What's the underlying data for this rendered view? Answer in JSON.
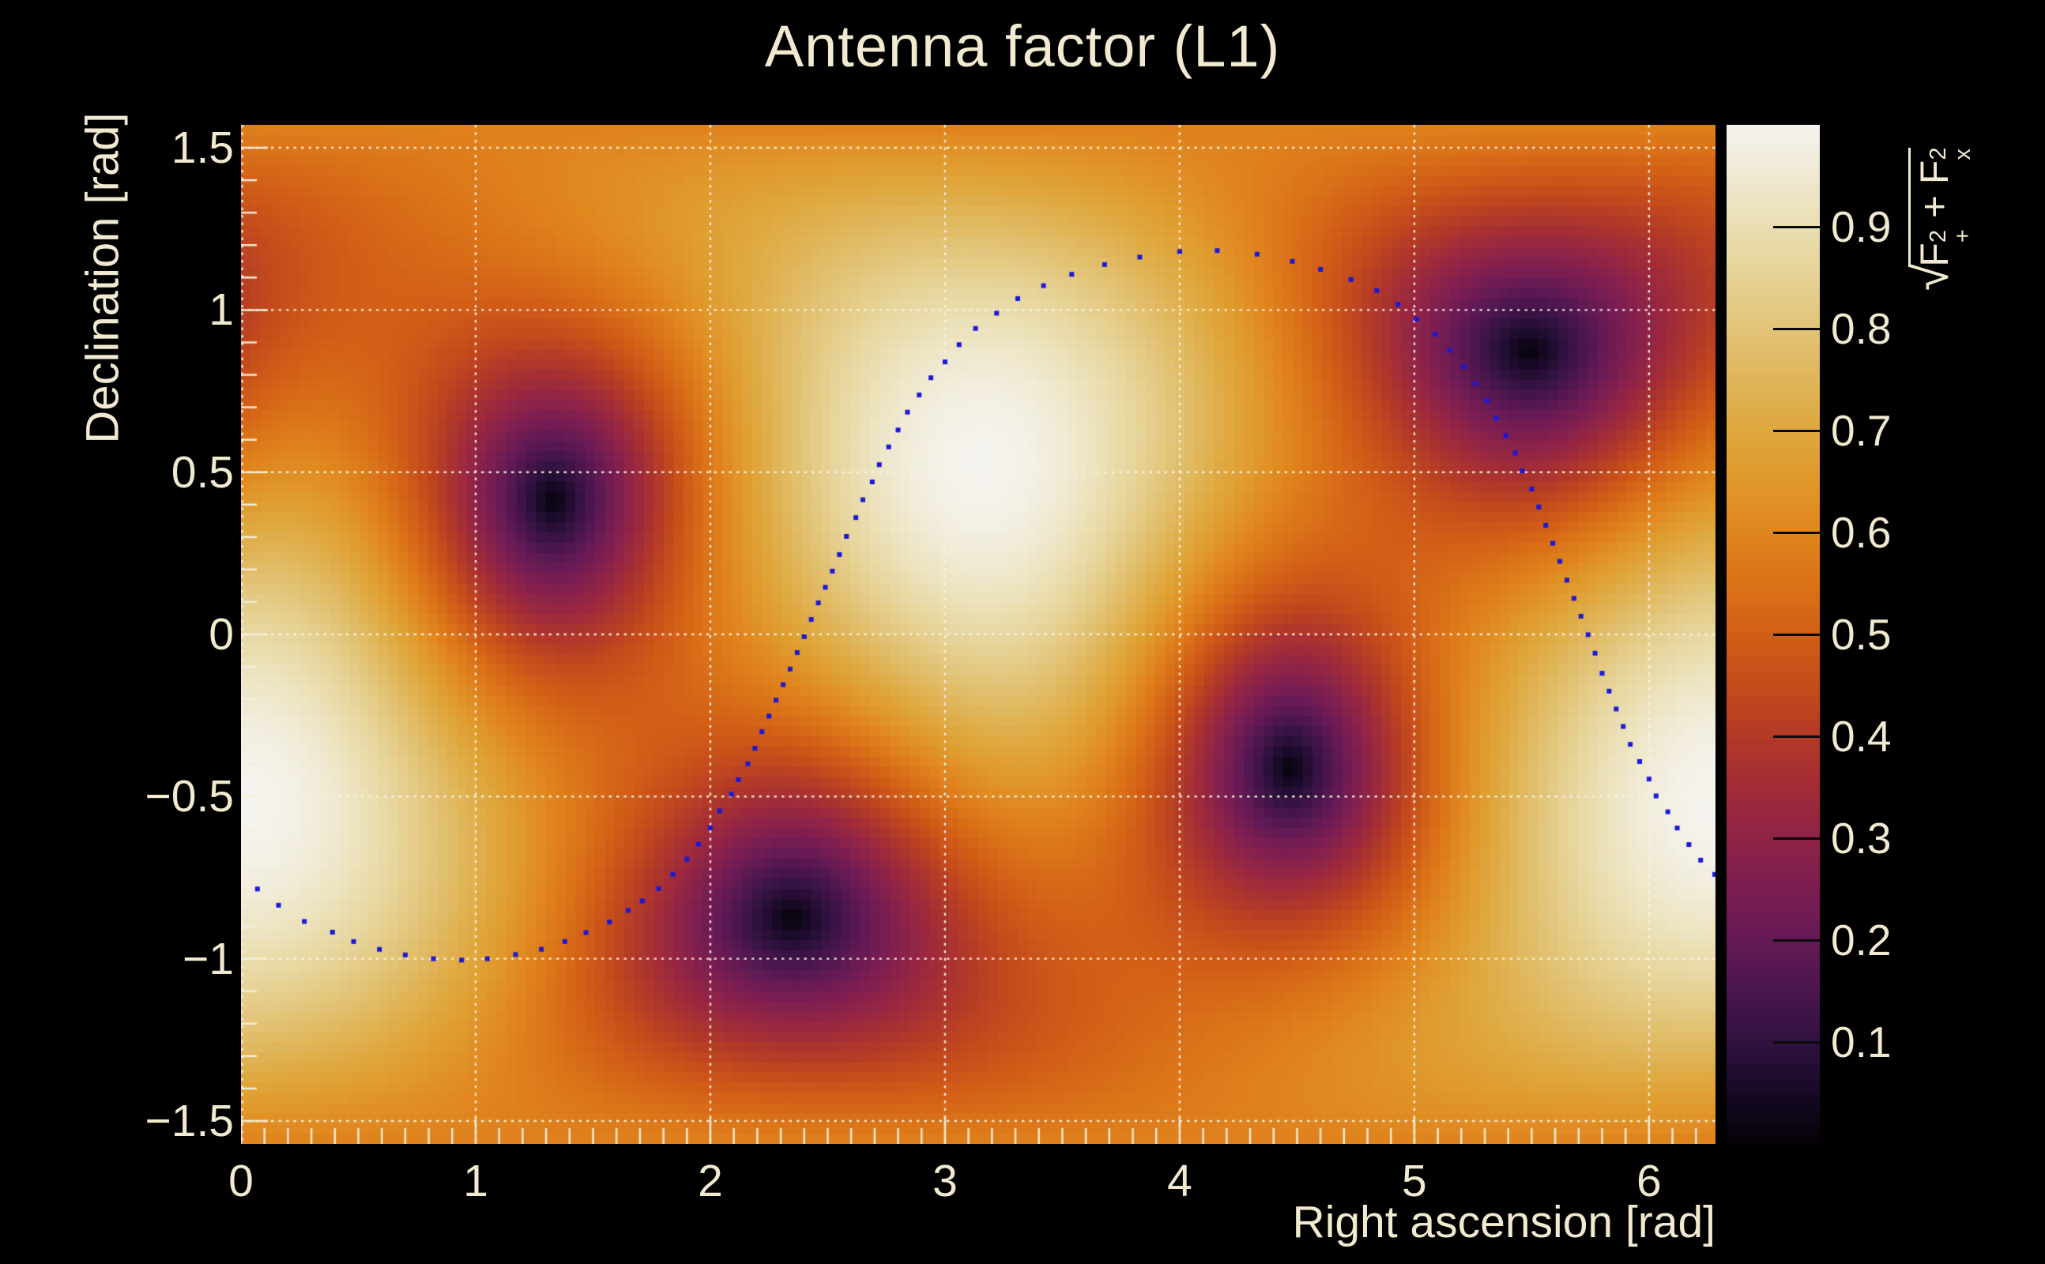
{
  "page": {
    "background_color": "#000000",
    "text_color": "#f2ead0",
    "grid_color": "rgba(248,243,228,0.92)",
    "tick_color": "rgba(244,238,220,0.95)"
  },
  "title": "Antenna factor (L1)",
  "axis_titles": {
    "x": "Right ascension [rad]",
    "y": "Declination [rad]"
  },
  "formula": {
    "radical": "√",
    "f1": "F",
    "sup1": "2",
    "sub1": "+",
    "plus": " + ",
    "f2": "F",
    "sup2": "2",
    "sub2": "x"
  },
  "chart_data": {
    "type": "heatmap",
    "title": "Antenna factor (L1)",
    "xlabel": "Right ascension [rad]",
    "ylabel": "Declination [rad]",
    "zlabel": "sqrt(F+^2 + Fx^2)",
    "xlim": [
      0,
      6.28319
    ],
    "ylim": [
      -1.5708,
      1.5708
    ],
    "zlim": [
      0,
      1
    ],
    "grid": true,
    "x_ticks": [
      0,
      1,
      2,
      3,
      4,
      5,
      6
    ],
    "y_ticks": [
      1.5,
      1.0,
      0.5,
      0.0,
      -0.5,
      -1.0,
      -1.5
    ],
    "y_tick_labels": [
      "1.5",
      "1",
      "0.5",
      "0",
      "−0.5",
      "−1",
      "−1.5"
    ],
    "z_ticks": [
      0.9,
      0.8,
      0.7,
      0.6,
      0.5,
      0.4,
      0.3,
      0.2,
      0.1
    ],
    "z_tick_labels": [
      "0.9",
      "0.8",
      "0.7",
      "0.6",
      "0.5",
      "0.4",
      "0.3",
      "0.2",
      "0.1"
    ],
    "minor_tick_step": 0.1,
    "bins": {
      "x": 150,
      "y": 100
    },
    "model": {
      "kind": "interferometer_antenna_power_pattern",
      "formula": "sqrt(0.25*(1+cos^2(theta))^2*cos^2(2*phi) + cos^2(theta)*sin^2(2*phi))",
      "zenith_ra": 3.156,
      "zenith_dec": 0.524,
      "null1_ra": 1.33,
      "null1_dec": 0.413,
      "null2_ra": 5.511,
      "null2_dec": 0.879,
      "maxima": [
        [
          3.156,
          0.524
        ],
        [
          0.014,
          -0.524
        ]
      ],
      "nulls": [
        [
          1.33,
          0.413
        ],
        [
          2.369,
          -0.879
        ],
        [
          4.472,
          -0.413
        ],
        [
          5.511,
          0.879
        ]
      ]
    },
    "palette": [
      [
        0.0,
        "#060207"
      ],
      [
        0.05,
        "#190a28"
      ],
      [
        0.1,
        "#311240"
      ],
      [
        0.15,
        "#4c164e"
      ],
      [
        0.2,
        "#661a55"
      ],
      [
        0.25,
        "#7c1e51"
      ],
      [
        0.3,
        "#902447"
      ],
      [
        0.35,
        "#a32d37"
      ],
      [
        0.4,
        "#b43b26"
      ],
      [
        0.45,
        "#c54d1b"
      ],
      [
        0.5,
        "#d25f17"
      ],
      [
        0.55,
        "#db7318"
      ],
      [
        0.6,
        "#e0861e"
      ],
      [
        0.65,
        "#e0992b"
      ],
      [
        0.7,
        "#dfa83f"
      ],
      [
        0.75,
        "#e0b65b"
      ],
      [
        0.8,
        "#e2c478"
      ],
      [
        0.85,
        "#e6d295"
      ],
      [
        0.9,
        "#eadfb2"
      ],
      [
        0.95,
        "#f0e9d1"
      ],
      [
        1.0,
        "#f5f3ee"
      ]
    ],
    "track": {
      "color": "#1b18d6",
      "marker": "square",
      "size": 6,
      "points": [
        [
          0.07,
          -0.785
        ],
        [
          0.16,
          -0.835
        ],
        [
          0.27,
          -0.885
        ],
        [
          0.39,
          -0.918
        ],
        [
          0.48,
          -0.947
        ],
        [
          0.59,
          -0.971
        ],
        [
          0.7,
          -0.988
        ],
        [
          0.82,
          -1.0
        ],
        [
          0.94,
          -1.004
        ],
        [
          1.05,
          -1.0
        ],
        [
          1.17,
          -0.987
        ],
        [
          1.28,
          -0.971
        ],
        [
          1.38,
          -0.947
        ],
        [
          1.47,
          -0.919
        ],
        [
          1.57,
          -0.887
        ],
        [
          1.65,
          -0.851
        ],
        [
          1.71,
          -0.822
        ],
        [
          1.78,
          -0.784
        ],
        [
          1.84,
          -0.74
        ],
        [
          1.9,
          -0.693
        ],
        [
          1.95,
          -0.647
        ],
        [
          2.0,
          -0.596
        ],
        [
          2.04,
          -0.544
        ],
        [
          2.09,
          -0.493
        ],
        [
          2.12,
          -0.448
        ],
        [
          2.16,
          -0.399
        ],
        [
          2.19,
          -0.351
        ],
        [
          2.22,
          -0.3
        ],
        [
          2.25,
          -0.252
        ],
        [
          2.28,
          -0.203
        ],
        [
          2.31,
          -0.155
        ],
        [
          2.34,
          -0.107
        ],
        [
          2.37,
          -0.056
        ],
        [
          2.4,
          -0.007
        ],
        [
          2.43,
          0.046
        ],
        [
          2.46,
          0.097
        ],
        [
          2.49,
          0.145
        ],
        [
          2.52,
          0.195
        ],
        [
          2.55,
          0.246
        ],
        [
          2.58,
          0.302
        ],
        [
          2.62,
          0.36
        ],
        [
          2.65,
          0.415
        ],
        [
          2.69,
          0.47
        ],
        [
          2.72,
          0.523
        ],
        [
          2.76,
          0.578
        ],
        [
          2.8,
          0.63
        ],
        [
          2.84,
          0.685
        ],
        [
          2.89,
          0.738
        ],
        [
          2.94,
          0.791
        ],
        [
          3.0,
          0.84
        ],
        [
          3.06,
          0.893
        ],
        [
          3.13,
          0.943
        ],
        [
          3.22,
          0.99
        ],
        [
          3.31,
          1.035
        ],
        [
          3.42,
          1.075
        ],
        [
          3.54,
          1.11
        ],
        [
          3.68,
          1.14
        ],
        [
          3.83,
          1.163
        ],
        [
          4.0,
          1.18
        ],
        [
          4.16,
          1.183
        ],
        [
          4.33,
          1.172
        ],
        [
          4.48,
          1.15
        ],
        [
          4.6,
          1.125
        ],
        [
          4.73,
          1.094
        ],
        [
          4.84,
          1.06
        ],
        [
          4.93,
          1.017
        ],
        [
          5.01,
          0.972
        ],
        [
          5.09,
          0.925
        ],
        [
          5.15,
          0.876
        ],
        [
          5.21,
          0.825
        ],
        [
          5.26,
          0.774
        ],
        [
          5.31,
          0.72
        ],
        [
          5.35,
          0.666
        ],
        [
          5.39,
          0.613
        ],
        [
          5.43,
          0.559
        ],
        [
          5.46,
          0.504
        ],
        [
          5.5,
          0.448
        ],
        [
          5.53,
          0.393
        ],
        [
          5.56,
          0.336
        ],
        [
          5.59,
          0.281
        ],
        [
          5.62,
          0.225
        ],
        [
          5.65,
          0.167
        ],
        [
          5.68,
          0.111
        ],
        [
          5.71,
          0.056
        ],
        [
          5.74,
          -0.001
        ],
        [
          5.77,
          -0.058
        ],
        [
          5.8,
          -0.12
        ],
        [
          5.83,
          -0.175
        ],
        [
          5.86,
          -0.23
        ],
        [
          5.89,
          -0.284
        ],
        [
          5.92,
          -0.339
        ],
        [
          5.96,
          -0.392
        ],
        [
          6.0,
          -0.446
        ],
        [
          6.03,
          -0.498
        ],
        [
          6.08,
          -0.547
        ],
        [
          6.12,
          -0.597
        ],
        [
          6.17,
          -0.648
        ],
        [
          6.22,
          -0.696
        ],
        [
          6.28,
          -0.74
        ]
      ]
    }
  }
}
